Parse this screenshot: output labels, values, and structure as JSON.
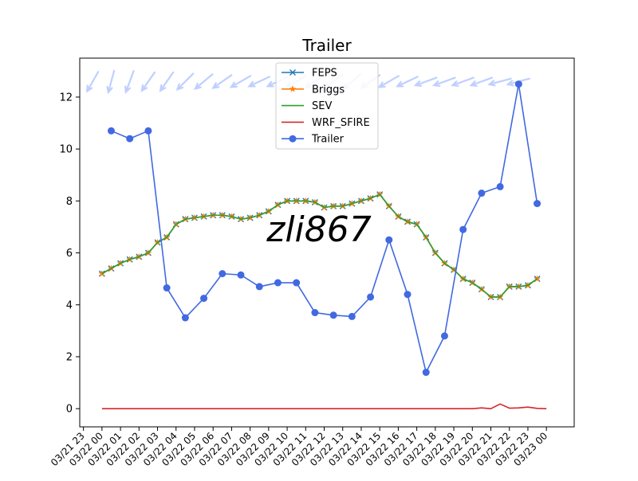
{
  "chart_data": {
    "type": "line",
    "title": "Trailer",
    "xlabel": "",
    "ylabel": "",
    "watermark": "zli867",
    "xlim_hours": [
      -1.2,
      25.5
    ],
    "ylim": [
      -0.7,
      13.5
    ],
    "x_tick_labels": [
      "03/21 23",
      "03/22 00",
      "03/22 01",
      "03/22 02",
      "03/22 03",
      "03/22 04",
      "03/22 05",
      "03/22 06",
      "03/22 07",
      "03/22 08",
      "03/22 09",
      "03/22 10",
      "03/22 11",
      "03/22 12",
      "03/22 13",
      "03/22 14",
      "03/22 15",
      "03/22 16",
      "03/22 17",
      "03/22 18",
      "03/22 19",
      "03/22 20",
      "03/22 21",
      "03/22 22",
      "03/22 23",
      "03/23 00"
    ],
    "y_ticks": [
      0,
      2,
      4,
      6,
      8,
      10,
      12
    ],
    "legend_position": "upper-center",
    "grid": false,
    "series": [
      {
        "name": "FEPS",
        "color": "#1f77b4",
        "marker": "x",
        "x": [
          0,
          0.5,
          1,
          1.5,
          2,
          2.5,
          3,
          3.5,
          4,
          4.5,
          5,
          5.5,
          6,
          6.5,
          7,
          7.5,
          8,
          8.5,
          9,
          9.5,
          10,
          10.5,
          11,
          11.5,
          12,
          12.5,
          13,
          13.5,
          14,
          14.5,
          15,
          15.5,
          16,
          16.5,
          17,
          17.5,
          18,
          18.5,
          19,
          19.5,
          20,
          20.5,
          21,
          21.5,
          22,
          22.5,
          23,
          23.5,
          24
        ],
        "y": [
          5.2,
          5.4,
          5.6,
          5.75,
          5.85,
          6.0,
          6.4,
          6.6,
          7.1,
          7.3,
          7.35,
          7.4,
          7.45,
          7.45,
          7.4,
          7.3,
          7.35,
          7.45,
          7.6,
          7.85,
          8.0,
          8.0,
          8.0,
          7.95,
          7.75,
          7.8,
          7.8,
          7.9,
          8.0,
          8.1,
          8.25,
          7.8,
          7.4,
          7.2,
          7.1,
          6.6,
          6.0,
          5.6,
          5.35,
          5.0,
          4.85,
          4.6,
          4.3,
          4.3,
          4.7,
          4.7,
          4.75,
          5.0,
          null
        ]
      },
      {
        "name": "Briggs",
        "color": "#ff7f0e",
        "marker": "star",
        "x": [
          0,
          0.5,
          1,
          1.5,
          2,
          2.5,
          3,
          3.5,
          4,
          4.5,
          5,
          5.5,
          6,
          6.5,
          7,
          7.5,
          8,
          8.5,
          9,
          9.5,
          10,
          10.5,
          11,
          11.5,
          12,
          12.5,
          13,
          13.5,
          14,
          14.5,
          15,
          15.5,
          16,
          16.5,
          17,
          17.5,
          18,
          18.5,
          19,
          19.5,
          20,
          20.5,
          21,
          21.5,
          22,
          22.5,
          23,
          23.5,
          24
        ],
        "y": [
          5.2,
          5.4,
          5.6,
          5.75,
          5.85,
          6.0,
          6.4,
          6.6,
          7.1,
          7.3,
          7.35,
          7.4,
          7.45,
          7.45,
          7.4,
          7.3,
          7.35,
          7.45,
          7.6,
          7.85,
          8.0,
          8.0,
          8.0,
          7.95,
          7.75,
          7.8,
          7.8,
          7.9,
          8.0,
          8.1,
          8.25,
          7.8,
          7.4,
          7.2,
          7.1,
          6.6,
          6.0,
          5.6,
          5.35,
          5.0,
          4.85,
          4.6,
          4.3,
          4.3,
          4.7,
          4.7,
          4.75,
          5.0,
          null
        ]
      },
      {
        "name": "SEV",
        "color": "#2ca02c",
        "marker": "",
        "x": [
          0,
          0.5,
          1,
          1.5,
          2,
          2.5,
          3,
          3.5,
          4,
          4.5,
          5,
          5.5,
          6,
          6.5,
          7,
          7.5,
          8,
          8.5,
          9,
          9.5,
          10,
          10.5,
          11,
          11.5,
          12,
          12.5,
          13,
          13.5,
          14,
          14.5,
          15,
          15.5,
          16,
          16.5,
          17,
          17.5,
          18,
          18.5,
          19,
          19.5,
          20,
          20.5,
          21,
          21.5,
          22,
          22.5,
          23,
          23.5,
          24
        ],
        "y": [
          5.2,
          5.4,
          5.6,
          5.75,
          5.85,
          6.0,
          6.4,
          6.6,
          7.1,
          7.3,
          7.35,
          7.4,
          7.45,
          7.45,
          7.4,
          7.3,
          7.35,
          7.45,
          7.6,
          7.85,
          8.0,
          8.0,
          8.0,
          7.95,
          7.75,
          7.8,
          7.8,
          7.9,
          8.0,
          8.1,
          8.25,
          7.8,
          7.4,
          7.2,
          7.1,
          6.6,
          6.0,
          5.6,
          5.35,
          5.0,
          4.85,
          4.6,
          4.3,
          4.3,
          4.7,
          4.7,
          4.75,
          5.0,
          null
        ]
      },
      {
        "name": "WRF_SFIRE",
        "color": "#d62728",
        "marker": "",
        "x": [
          0,
          2,
          4,
          6,
          8,
          10,
          12,
          14,
          16,
          18,
          20,
          20.5,
          21,
          21.5,
          22,
          22.5,
          23,
          23.5,
          24
        ],
        "y": [
          0,
          0,
          0,
          0,
          0,
          0,
          0,
          0,
          0,
          0,
          0,
          0.03,
          0.0,
          0.18,
          0.02,
          0.03,
          0.06,
          0.01,
          0.0
        ]
      },
      {
        "name": "Trailer",
        "color": "#4169e1",
        "marker": "o",
        "x": [
          0.5,
          1.5,
          2.5,
          3.5,
          4.5,
          5.5,
          6.5,
          7.5,
          8.5,
          9.5,
          10.5,
          11.5,
          12.5,
          13.5,
          14.5,
          15.5,
          16.5,
          17.5,
          18.5,
          19.5,
          20.5,
          21.5,
          22.5,
          23.5
        ],
        "y": [
          10.7,
          10.4,
          10.7,
          4.65,
          3.5,
          4.25,
          5.2,
          5.15,
          4.7,
          4.85,
          4.85,
          3.7,
          3.6,
          3.55,
          4.3,
          6.5,
          4.4,
          1.4,
          2.8,
          6.9,
          8.3,
          8.55,
          12.5,
          7.9
        ]
      }
    ],
    "wind_barbs": {
      "color": "#c0cfff",
      "y": 12.6,
      "x": [
        -0.5,
        0.5,
        1.5,
        2.5,
        3.5,
        4.5,
        5.5,
        6.5,
        7.5,
        8.5,
        9.5,
        10.5,
        11.5,
        12.5,
        13.5,
        14.5,
        15.5,
        16.5,
        17.5,
        18.5,
        19.5,
        20.5,
        21.5,
        22.5
      ],
      "angle_deg": [
        240,
        255,
        250,
        235,
        235,
        225,
        220,
        215,
        210,
        205,
        205,
        210,
        215,
        220,
        220,
        215,
        210,
        205,
        200,
        200,
        200,
        200,
        195,
        195
      ]
    }
  }
}
